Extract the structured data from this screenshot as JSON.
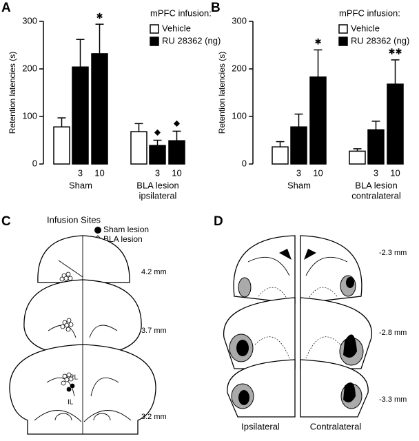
{
  "chart_data": [
    {
      "type": "bar",
      "panel_label": "A",
      "y_label": "Retention latencies (s)",
      "ylim": [
        0,
        300
      ],
      "yticks": [
        0,
        100,
        200,
        300
      ],
      "legend_title": "mPFC infusion:",
      "legend": [
        {
          "name": "Vehicle",
          "color": "#ffffff"
        },
        {
          "name": "RU 28362 (ng)",
          "color": "#000000"
        }
      ],
      "categories": [
        null,
        "3",
        "10",
        null,
        "3",
        "10"
      ],
      "bar_colors": [
        "#ffffff",
        "#000000",
        "#000000",
        "#ffffff",
        "#000000",
        "#000000"
      ],
      "values": [
        78,
        204,
        232,
        68,
        39,
        49
      ],
      "errors": [
        19,
        58,
        62,
        17,
        11,
        20
      ],
      "markers": [
        null,
        null,
        "✱",
        null,
        "◆",
        "◆"
      ],
      "group_labels": [
        [
          "Sham"
        ],
        [
          "BLA lesion",
          "ipsilateral"
        ]
      ]
    },
    {
      "type": "bar",
      "panel_label": "B",
      "y_label": "Retention latencies (s)",
      "ylim": [
        0,
        300
      ],
      "yticks": [
        0,
        100,
        200,
        300
      ],
      "legend_title": "mPFC infusion:",
      "legend": [
        {
          "name": "Vehicle",
          "color": "#ffffff"
        },
        {
          "name": "RU 28362 (ng)",
          "color": "#000000"
        }
      ],
      "categories": [
        null,
        "3",
        "10",
        null,
        "3",
        "10"
      ],
      "bar_colors": [
        "#ffffff",
        "#000000",
        "#000000",
        "#ffffff",
        "#000000",
        "#000000"
      ],
      "values": [
        36,
        78,
        183,
        27,
        72,
        168
      ],
      "errors": [
        11,
        27,
        57,
        5,
        18,
        51
      ],
      "markers": [
        null,
        null,
        "✱",
        null,
        null,
        "✱✱"
      ],
      "group_labels": [
        [
          "Sham"
        ],
        [
          "BLA lesion",
          "contralateral"
        ]
      ]
    }
  ],
  "panels": {
    "C": {
      "label": "C",
      "title": "Infusion Sites",
      "legend": [
        "Sham lesion",
        "BLA lesion"
      ],
      "levels": [
        "4.2 mm",
        "3.7 mm",
        "3.2 mm"
      ],
      "regions": [
        "PRL",
        "IL"
      ]
    },
    "D": {
      "label": "D",
      "levels": [
        "-2.3 mm",
        "-2.8 mm",
        "-3.3 mm"
      ],
      "sides": [
        "Ipsilateral",
        "Contralateral"
      ]
    }
  }
}
